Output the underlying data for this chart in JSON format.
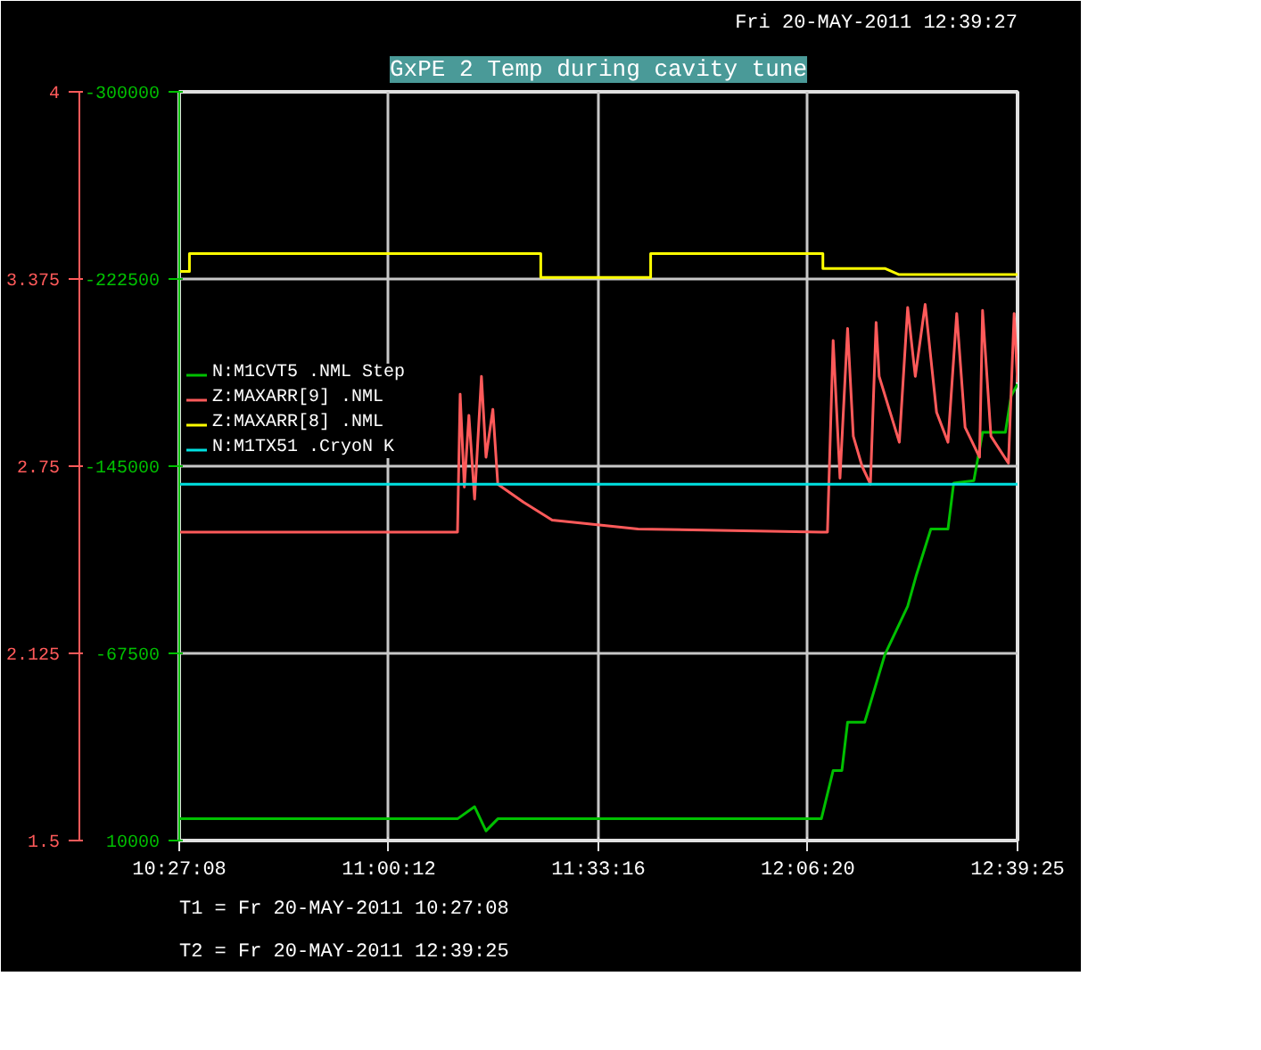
{
  "chart_data": {
    "type": "line",
    "title": "GxPE 2 Temp during cavity tune",
    "annotations": [
      "Fri 20-MAY-2011 12:39:27",
      "T1 = Fr 20-MAY-2011 10:27:08",
      "T2 = Fr 20-MAY-2011 12:39:25"
    ],
    "xlim": [
      10.452222,
      12.656944
    ],
    "xticks": [
      {
        "value": 10.452222,
        "label": "10:27:08"
      },
      {
        "value": 11.003333,
        "label": "11:00:12"
      },
      {
        "value": 11.554444,
        "label": "11:33:16"
      },
      {
        "value": 12.105556,
        "label": "12:06:20"
      },
      {
        "value": 12.656944,
        "label": "12:39:25"
      }
    ],
    "ylim": [
      10000,
      -300000
    ],
    "yticks": [
      -300000,
      -222500,
      -145000,
      -67500,
      10000
    ],
    "y2lim": [
      1.5,
      4
    ],
    "y2ticks": [
      4,
      3.375,
      2.75,
      2.125,
      1.5
    ],
    "grid": true,
    "legend": "left",
    "series": [
      {
        "name": "N:M1CVT5 .NML Step",
        "color": "#00c000",
        "axis": "y",
        "x": [
          10.4523,
          11.184,
          11.229,
          11.259,
          11.29,
          12.141,
          12.172,
          12.195,
          12.21,
          12.255,
          12.308,
          12.368,
          12.391,
          12.429,
          12.474,
          12.489,
          12.542,
          12.565,
          12.625,
          12.64,
          12.6569
        ],
        "values": [
          1000,
          1000,
          -4000,
          6000,
          1000,
          1000,
          -19000,
          -19000,
          -39000,
          -39000,
          -67000,
          -87000,
          -100000,
          -119000,
          -119000,
          -138000,
          -139000,
          -159000,
          -159000,
          -174000,
          -179000
        ]
      },
      {
        "name": "Z:MAXARR[9] .NML",
        "color": "#ff5a5a",
        "axis": "y2",
        "x": [
          10.4523,
          11.184,
          11.191,
          11.202,
          11.214,
          11.229,
          11.247,
          11.259,
          11.277,
          11.29,
          11.357,
          11.433,
          11.507,
          11.659,
          12.141,
          12.157,
          12.172,
          12.19,
          12.21,
          12.225,
          12.248,
          12.27,
          12.285,
          12.293,
          12.346,
          12.368,
          12.388,
          12.414,
          12.444,
          12.474,
          12.497,
          12.519,
          12.557,
          12.565,
          12.587,
          12.633,
          12.648,
          12.6569
        ],
        "values": [
          2.53,
          2.53,
          2.99,
          2.68,
          2.92,
          2.64,
          3.05,
          2.78,
          2.94,
          2.69,
          2.63,
          2.57,
          2.56,
          2.54,
          2.53,
          2.53,
          3.17,
          2.71,
          3.21,
          2.85,
          2.75,
          2.69,
          3.23,
          3.05,
          2.83,
          3.28,
          3.05,
          3.29,
          2.93,
          2.83,
          3.26,
          2.88,
          2.78,
          3.27,
          2.85,
          2.76,
          3.26,
          3.03
        ]
      },
      {
        "name": "Z:MAXARR[8] .NML",
        "color": "#ffff00",
        "axis": "y2",
        "x": [
          10.4523,
          10.479,
          10.479,
          11.403,
          11.403,
          11.692,
          11.692,
          12.145,
          12.145,
          12.308,
          12.344,
          12.6569
        ],
        "values": [
          3.4,
          3.4,
          3.46,
          3.46,
          3.38,
          3.38,
          3.46,
          3.46,
          3.41,
          3.41,
          3.39,
          3.39
        ]
      },
      {
        "name": "N:M1TX51 .CryoN K",
        "color": "#00e0e0",
        "axis": "y2",
        "x": [
          10.4523,
          12.6569
        ],
        "values": [
          2.69,
          2.69
        ]
      }
    ]
  }
}
